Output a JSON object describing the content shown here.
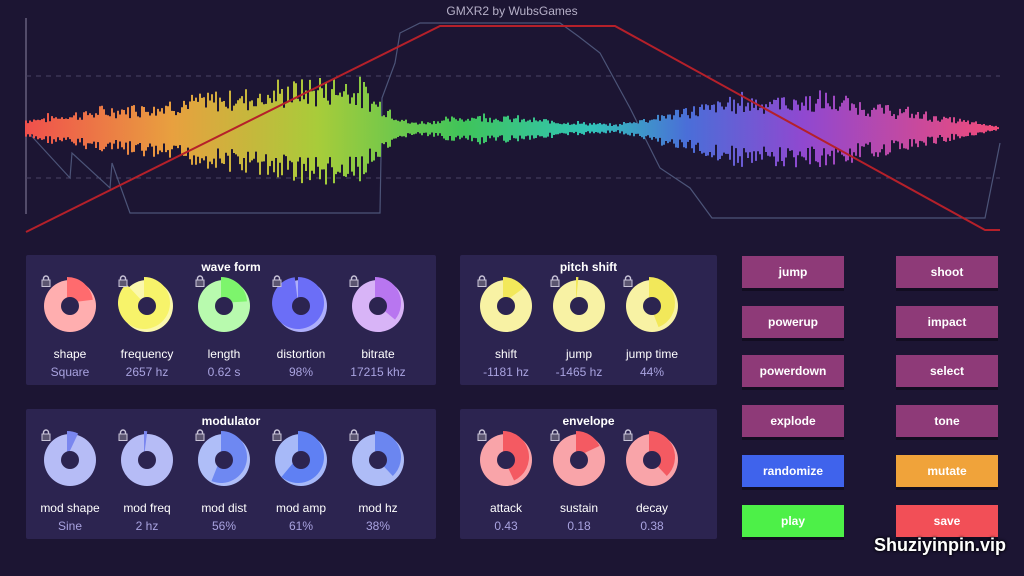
{
  "app": {
    "title": "GMXR2 by WubsGames"
  },
  "panels": {
    "waveform": {
      "title": "wave form",
      "knobs": [
        {
          "label": "shape",
          "value": "Square",
          "fraction": 0.23,
          "color": "#ff6b6e"
        },
        {
          "label": "frequency",
          "value": "2657 hz",
          "fraction": 0.88,
          "color": "#f7f36a"
        },
        {
          "label": "length",
          "value": "0.62 s",
          "fraction": 0.24,
          "color": "#7df56c"
        },
        {
          "label": "distortion",
          "value": "98%",
          "fraction": 0.98,
          "color": "#6b6ef7"
        },
        {
          "label": "bitrate",
          "value": "17215 khz",
          "fraction": 0.36,
          "color": "#b876f0"
        }
      ]
    },
    "modulator": {
      "title": "modulator",
      "knobs": [
        {
          "label": "mod shape",
          "value": "Sine",
          "fraction": 0.07,
          "color": "#7a86ef"
        },
        {
          "label": "mod freq",
          "value": "2 hz",
          "fraction": 0.02,
          "color": "#7a86ef"
        },
        {
          "label": "mod dist",
          "value": "56%",
          "fraction": 0.56,
          "color": "#6e88f2"
        },
        {
          "label": "mod amp",
          "value": "61%",
          "fraction": 0.61,
          "color": "#5f80f3"
        },
        {
          "label": "mod hz",
          "value": "38%",
          "fraction": 0.38,
          "color": "#6b86f0"
        }
      ]
    },
    "pitchshift": {
      "title": "pitch shift",
      "knobs": [
        {
          "label": "shift",
          "value": "-1181 hz",
          "fraction": 0.15,
          "color": "#f2e85a"
        },
        {
          "label": "jump",
          "value": "-1465 hz",
          "fraction": 0.0,
          "color": "#f2e85a"
        },
        {
          "label": "jump time",
          "value": "44%",
          "fraction": 0.44,
          "color": "#f2e85a"
        }
      ]
    },
    "envelope": {
      "title": "envelope",
      "knobs": [
        {
          "label": "attack",
          "value": "0.43",
          "fraction": 0.43,
          "color": "#f45a62"
        },
        {
          "label": "sustain",
          "value": "0.18",
          "fraction": 0.18,
          "color": "#f45a62"
        },
        {
          "label": "decay",
          "value": "0.38",
          "fraction": 0.38,
          "color": "#f45a62"
        }
      ]
    }
  },
  "buttons": {
    "left": [
      {
        "label": "jump",
        "color": "#8e3a78"
      },
      {
        "label": "powerup",
        "color": "#8e3a78"
      },
      {
        "label": "powerdown",
        "color": "#8e3a78"
      },
      {
        "label": "explode",
        "color": "#8e3a78"
      },
      {
        "label": "randomize",
        "color": "#3f63ec"
      },
      {
        "label": "play",
        "color": "#4df048"
      }
    ],
    "right": [
      {
        "label": "shoot",
        "color": "#8e3a78"
      },
      {
        "label": "impact",
        "color": "#8e3a78"
      },
      {
        "label": "select",
        "color": "#8e3a78"
      },
      {
        "label": "tone",
        "color": "#8e3a78"
      },
      {
        "label": "mutate",
        "color": "#f0a33a"
      },
      {
        "label": "save",
        "color": "#f24f57"
      }
    ]
  },
  "watermark": "Shuziyinpin.vip"
}
